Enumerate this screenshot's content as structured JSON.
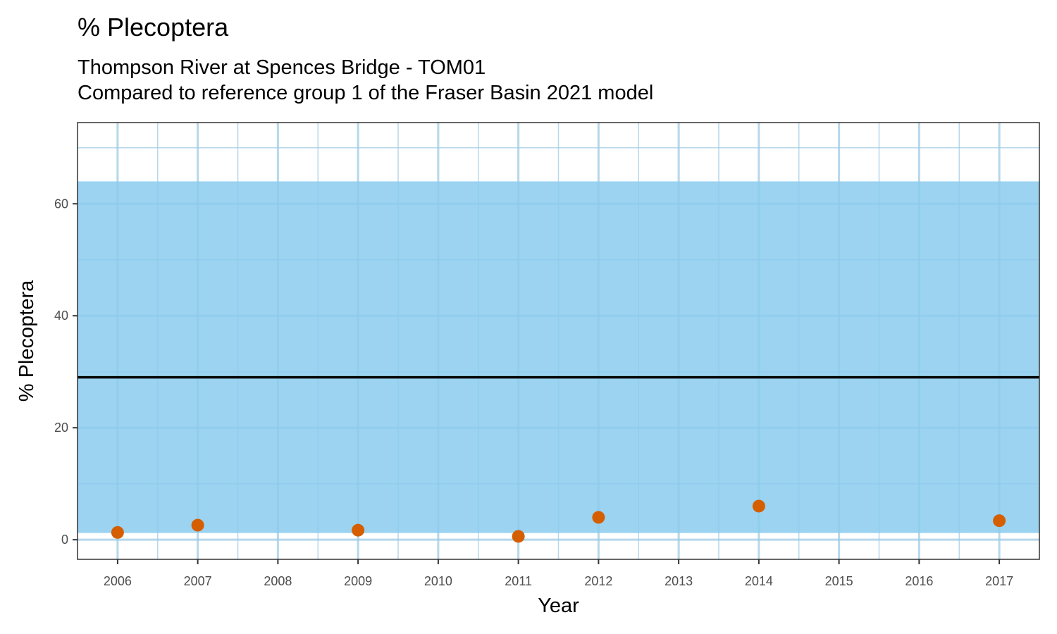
{
  "chart_data": {
    "type": "scatter",
    "title": "% Plecoptera",
    "subtitle": [
      "Thompson River at Spences Bridge - TOM01",
      "Compared to reference group 1 of the Fraser Basin 2021 model"
    ],
    "xlabel": "Year",
    "ylabel": "% Plecoptera",
    "xlim": [
      2005.5,
      2017.5
    ],
    "ylim": [
      -3.5,
      74.5
    ],
    "x_ticks": [
      2006,
      2007,
      2008,
      2009,
      2010,
      2011,
      2012,
      2013,
      2014,
      2015,
      2016,
      2017
    ],
    "y_ticks": [
      0,
      20,
      40,
      60
    ],
    "grid": true,
    "reference_band": {
      "lower": 1.2,
      "upper": 64.0,
      "color": "#9BD3F1"
    },
    "reference_line": {
      "value": 29.0,
      "color": "#000000"
    },
    "series": [
      {
        "color": "#D55E00",
        "x": [
          2006,
          2007,
          2009,
          2011,
          2012,
          2014,
          2017
        ],
        "y": [
          1.3,
          2.6,
          1.7,
          0.6,
          4.0,
          6.0,
          3.4
        ]
      }
    ]
  }
}
